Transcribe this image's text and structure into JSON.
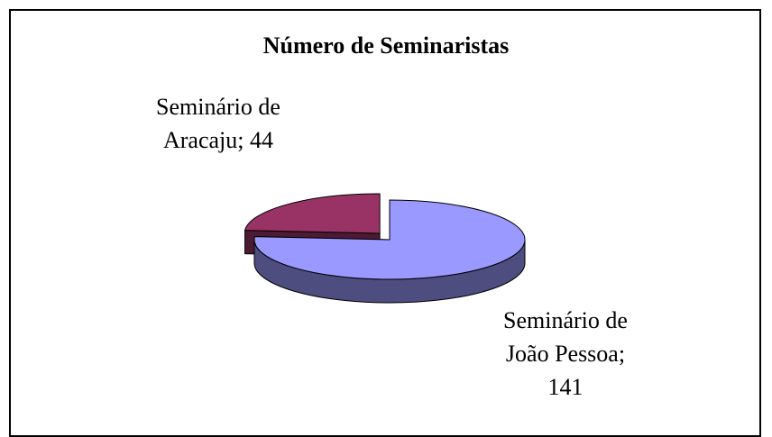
{
  "chart_data": {
    "type": "pie3d",
    "title": "Número de Seminaristas",
    "values": [
      44,
      141
    ],
    "value_labels": [
      "Seminário de Aracaju; 44",
      "Seminário de João Pessoa; 141"
    ],
    "colors": [
      "#993366",
      "#9999ff"
    ]
  }
}
